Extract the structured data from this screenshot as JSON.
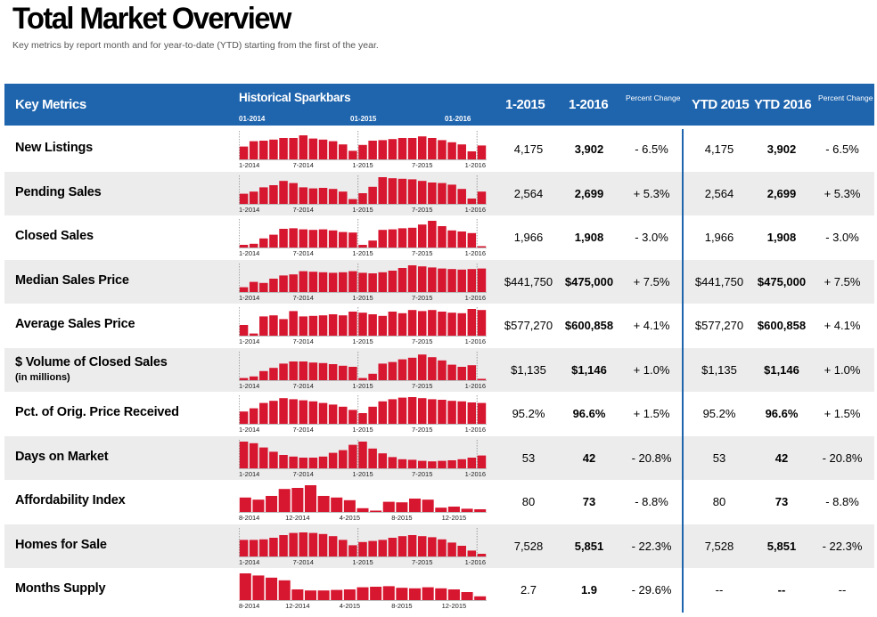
{
  "title": "Total Market Overview",
  "subtitle": "Key metrics by report month and for year-to-date (YTD) starting from the first of the year.",
  "header": {
    "key_metrics": "Key Metrics",
    "sparkbars": "Historical Sparkbars",
    "spark_ticks": [
      "01-2014",
      "01-2015",
      "01-2016"
    ],
    "col_1_2015": "1-2015",
    "col_1_2016": "1-2016",
    "pct_change": "Percent Change",
    "ytd_2015": "YTD 2015",
    "ytd_2016": "YTD 2016",
    "ytd_pct_change": "Percent Change"
  },
  "colors": {
    "header": "#1f65ae",
    "bar": "#d7162f",
    "row_shade": "#ececec"
  },
  "chart_data": {
    "type": "table",
    "rows": [
      {
        "metric": "New Listings",
        "sub": "",
        "v2015": "4,175",
        "v2016": "3,902",
        "pct": "- 6.5%",
        "ytd2015": "4,175",
        "ytd2016": "3,902",
        "ytdpct": "- 6.5%",
        "axis": [
          "1-2014",
          "7-2014",
          "1-2015",
          "7-2015",
          "1-2016"
        ],
        "spark": [
          48,
          68,
          70,
          74,
          80,
          80,
          90,
          78,
          74,
          68,
          56,
          32,
          54,
          70,
          72,
          76,
          80,
          80,
          86,
          80,
          72,
          64,
          56,
          30,
          52
        ]
      },
      {
        "metric": "Pending Sales",
        "sub": "",
        "v2015": "2,564",
        "v2016": "2,699",
        "pct": "+ 5.3%",
        "ytd2015": "2,564",
        "ytd2016": "2,699",
        "ytdpct": "+ 5.3%",
        "axis": [
          "1-2014",
          "7-2014",
          "1-2015",
          "7-2015",
          "1-2016"
        ],
        "spark": [
          38,
          46,
          62,
          70,
          86,
          78,
          62,
          58,
          60,
          56,
          46,
          18,
          40,
          64,
          100,
          96,
          94,
          92,
          86,
          80,
          78,
          72,
          56,
          20,
          46
        ]
      },
      {
        "metric": "Closed Sales",
        "sub": "",
        "v2015": "1,966",
        "v2016": "1,908",
        "pct": "- 3.0%",
        "ytd2015": "1,966",
        "ytd2016": "1,908",
        "ytdpct": "- 3.0%",
        "axis": [
          "1-2014",
          "7-2014",
          "1-2015",
          "7-2015",
          "1-2016"
        ],
        "spark": [
          10,
          14,
          34,
          48,
          70,
          72,
          68,
          66,
          68,
          64,
          58,
          56,
          10,
          26,
          66,
          68,
          72,
          74,
          86,
          100,
          80,
          64,
          60,
          54,
          4
        ]
      },
      {
        "metric": "Median Sales Price",
        "sub": "",
        "v2015": "$441,750",
        "v2016": "$475,000",
        "pct": "+ 7.5%",
        "ytd2015": "$441,750",
        "ytd2016": "$475,000",
        "ytdpct": "+ 7.5%",
        "axis": [
          "1-2014",
          "7-2014",
          "1-2015",
          "7-2015",
          "1-2016"
        ],
        "spark": [
          18,
          38,
          34,
          50,
          62,
          66,
          78,
          76,
          74,
          72,
          74,
          78,
          72,
          70,
          74,
          80,
          90,
          100,
          96,
          92,
          88,
          86,
          84,
          86,
          88
        ]
      },
      {
        "metric": "Average Sales Price",
        "sub": "",
        "v2015": "$577,270",
        "v2016": "$600,858",
        "pct": "+ 4.1%",
        "ytd2015": "$577,270",
        "ytd2016": "$600,858",
        "ytdpct": "+ 4.1%",
        "axis": [
          "1-2014",
          "7-2014",
          "1-2015",
          "7-2015",
          "1-2016"
        ],
        "spark": [
          40,
          8,
          72,
          76,
          62,
          92,
          72,
          74,
          76,
          80,
          76,
          90,
          86,
          80,
          74,
          90,
          84,
          96,
          92,
          96,
          90,
          86,
          84,
          100,
          96
        ]
      },
      {
        "metric": "$ Volume of Closed Sales",
        "sub": "(in millions)",
        "v2015": "$1,135",
        "v2016": "$1,146",
        "pct": "+ 1.0%",
        "ytd2015": "$1,135",
        "ytd2016": "$1,146",
        "ytdpct": "+ 1.0%",
        "axis": [
          "1-2014",
          "7-2014",
          "1-2015",
          "7-2015",
          "1-2016"
        ],
        "spark": [
          8,
          14,
          34,
          46,
          62,
          70,
          70,
          66,
          64,
          60,
          54,
          50,
          8,
          24,
          62,
          68,
          78,
          84,
          96,
          86,
          74,
          58,
          50,
          56,
          2
        ]
      },
      {
        "metric": "Pct. of Orig. Price Received",
        "sub": "",
        "v2015": "95.2%",
        "v2016": "96.6%",
        "pct": "+ 1.5%",
        "ytd2015": "95.2%",
        "ytd2016": "96.6%",
        "ytdpct": "+ 1.5%",
        "axis": [
          "1-2014",
          "7-2014",
          "1-2015",
          "7-2015",
          "1-2016"
        ],
        "spark": [
          46,
          58,
          78,
          86,
          96,
          92,
          88,
          84,
          78,
          72,
          64,
          52,
          40,
          64,
          84,
          92,
          98,
          100,
          96,
          92,
          90,
          86,
          84,
          80,
          78
        ]
      },
      {
        "metric": "Days on Market",
        "sub": "",
        "v2015": "53",
        "v2016": "42",
        "pct": "- 20.8%",
        "ytd2015": "53",
        "ytd2016": "42",
        "ytdpct": "- 20.8%",
        "axis": [
          "1-2014",
          "7-2014",
          "1-2015",
          "7-2015",
          "1-2016"
        ],
        "spark": [
          100,
          94,
          78,
          62,
          50,
          44,
          40,
          40,
          44,
          58,
          68,
          88,
          100,
          74,
          56,
          42,
          34,
          32,
          28,
          26,
          28,
          30,
          34,
          40,
          48
        ]
      },
      {
        "metric": "Affordability Index",
        "sub": "",
        "v2015": "80",
        "v2016": "73",
        "pct": "- 8.8%",
        "ytd2015": "80",
        "ytd2016": "73",
        "ytdpct": "- 8.8%",
        "axis": [
          "8-2014",
          "12-2014",
          "4-2015",
          "8-2015",
          "12-2015"
        ],
        "spark": [
          54,
          46,
          60,
          86,
          90,
          100,
          60,
          54,
          44,
          14,
          4,
          38,
          36,
          50,
          46,
          16,
          20,
          12,
          10
        ]
      },
      {
        "metric": "Homes for Sale",
        "sub": "",
        "v2015": "7,528",
        "v2016": "5,851",
        "pct": "- 22.3%",
        "ytd2015": "7,528",
        "ytd2016": "5,851",
        "ytdpct": "- 22.3%",
        "axis": [
          "1-2014",
          "7-2014",
          "1-2015",
          "7-2015",
          "1-2016"
        ],
        "spark": [
          62,
          62,
          64,
          70,
          80,
          88,
          90,
          88,
          84,
          76,
          62,
          42,
          54,
          58,
          62,
          70,
          76,
          80,
          76,
          72,
          64,
          52,
          40,
          22,
          10
        ]
      },
      {
        "metric": "Months Supply",
        "sub": "",
        "v2015": "2.7",
        "v2016": "1.9",
        "pct": "- 29.6%",
        "ytd2015": "--",
        "ytd2016": "--",
        "ytdpct": "--",
        "axis": [
          "8-2014",
          "12-2014",
          "4-2015",
          "8-2015",
          "12-2015"
        ],
        "spark": [
          100,
          92,
          84,
          74,
          40,
          36,
          36,
          38,
          40,
          48,
          50,
          52,
          46,
          44,
          48,
          44,
          40,
          30,
          14
        ]
      }
    ]
  }
}
